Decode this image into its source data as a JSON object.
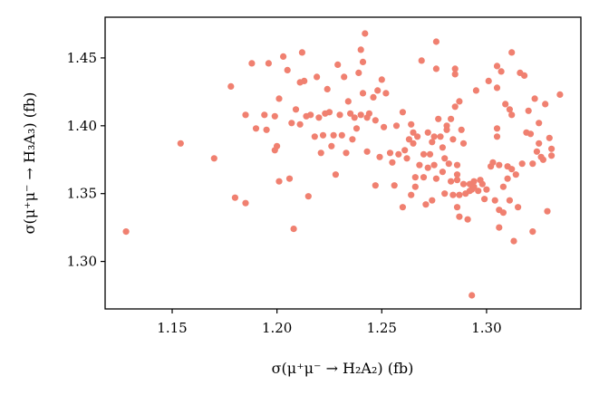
{
  "chart_data": {
    "type": "scatter",
    "xlabel": "σ(μ⁺μ⁻ → H₂A₂) (fb)",
    "ylabel": "σ(μ⁺μ⁻ → H₃A₃) (fb)",
    "xlim": [
      1.118,
      1.345
    ],
    "ylim": [
      1.265,
      1.48
    ],
    "xticks": [
      "1.15",
      "1.20",
      "1.25",
      "1.30"
    ],
    "yticks": [
      "1.30",
      "1.35",
      "1.40",
      "1.45"
    ],
    "grid": false,
    "marker_color": "#f08070",
    "series": [
      {
        "points": [
          [
            1.128,
            1.322
          ],
          [
            1.154,
            1.387
          ],
          [
            1.17,
            1.376
          ],
          [
            1.178,
            1.429
          ],
          [
            1.18,
            1.347
          ],
          [
            1.185,
            1.343
          ],
          [
            1.185,
            1.408
          ],
          [
            1.188,
            1.446
          ],
          [
            1.19,
            1.398
          ],
          [
            1.194,
            1.408
          ],
          [
            1.195,
            1.397
          ],
          [
            1.196,
            1.446
          ],
          [
            1.199,
            1.407
          ],
          [
            1.199,
            1.382
          ],
          [
            1.2,
            1.385
          ],
          [
            1.201,
            1.42
          ],
          [
            1.201,
            1.359
          ],
          [
            1.203,
            1.451
          ],
          [
            1.205,
            1.441
          ],
          [
            1.206,
            1.361
          ],
          [
            1.207,
            1.402
          ],
          [
            1.208,
            1.324
          ],
          [
            1.209,
            1.412
          ],
          [
            1.211,
            1.401
          ],
          [
            1.211,
            1.432
          ],
          [
            1.212,
            1.454
          ],
          [
            1.213,
            1.433
          ],
          [
            1.214,
            1.407
          ],
          [
            1.215,
            1.348
          ],
          [
            1.216,
            1.408
          ],
          [
            1.218,
            1.392
          ],
          [
            1.219,
            1.436
          ],
          [
            1.22,
            1.406
          ],
          [
            1.221,
            1.38
          ],
          [
            1.222,
            1.393
          ],
          [
            1.223,
            1.409
          ],
          [
            1.224,
            1.427
          ],
          [
            1.225,
            1.41
          ],
          [
            1.226,
            1.385
          ],
          [
            1.227,
            1.393
          ],
          [
            1.228,
            1.364
          ],
          [
            1.229,
            1.445
          ],
          [
            1.23,
            1.408
          ],
          [
            1.231,
            1.393
          ],
          [
            1.232,
            1.436
          ],
          [
            1.233,
            1.38
          ],
          [
            1.234,
            1.418
          ],
          [
            1.235,
            1.409
          ],
          [
            1.236,
            1.39
          ],
          [
            1.237,
            1.406
          ],
          [
            1.238,
            1.398
          ],
          [
            1.239,
            1.439
          ],
          [
            1.24,
            1.456
          ],
          [
            1.24,
            1.408
          ],
          [
            1.241,
            1.447
          ],
          [
            1.241,
            1.424
          ],
          [
            1.242,
            1.468
          ],
          [
            1.243,
            1.406
          ],
          [
            1.243,
            1.381
          ],
          [
            1.244,
            1.409
          ],
          [
            1.246,
            1.421
          ],
          [
            1.247,
            1.404
          ],
          [
            1.247,
            1.356
          ],
          [
            1.248,
            1.426
          ],
          [
            1.249,
            1.377
          ],
          [
            1.25,
            1.434
          ],
          [
            1.251,
            1.399
          ],
          [
            1.252,
            1.424
          ],
          [
            1.254,
            1.38
          ],
          [
            1.255,
            1.373
          ],
          [
            1.256,
            1.356
          ],
          [
            1.257,
            1.4
          ],
          [
            1.258,
            1.379
          ],
          [
            1.26,
            1.34
          ],
          [
            1.26,
            1.41
          ],
          [
            1.261,
            1.382
          ],
          [
            1.262,
            1.376
          ],
          [
            1.263,
            1.39
          ],
          [
            1.264,
            1.401
          ],
          [
            1.264,
            1.349
          ],
          [
            1.265,
            1.387
          ],
          [
            1.265,
            1.395
          ],
          [
            1.266,
            1.362
          ],
          [
            1.266,
            1.355
          ],
          [
            1.267,
            1.392
          ],
          [
            1.268,
            1.371
          ],
          [
            1.269,
            1.448
          ],
          [
            1.27,
            1.379
          ],
          [
            1.27,
            1.362
          ],
          [
            1.271,
            1.342
          ],
          [
            1.272,
            1.395
          ],
          [
            1.272,
            1.369
          ],
          [
            1.273,
            1.379
          ],
          [
            1.274,
            1.388
          ],
          [
            1.274,
            1.345
          ],
          [
            1.275,
            1.371
          ],
          [
            1.275,
            1.392
          ],
          [
            1.276,
            1.462
          ],
          [
            1.276,
            1.442
          ],
          [
            1.276,
            1.361
          ],
          [
            1.277,
            1.405
          ],
          [
            1.278,
            1.392
          ],
          [
            1.279,
            1.384
          ],
          [
            1.279,
            1.366
          ],
          [
            1.28,
            1.376
          ],
          [
            1.28,
            1.35
          ],
          [
            1.281,
            1.4
          ],
          [
            1.281,
            1.397
          ],
          [
            1.282,
            1.372
          ],
          [
            1.283,
            1.405
          ],
          [
            1.283,
            1.359
          ],
          [
            1.284,
            1.349
          ],
          [
            1.284,
            1.39
          ],
          [
            1.285,
            1.442
          ],
          [
            1.285,
            1.438
          ],
          [
            1.285,
            1.414
          ],
          [
            1.286,
            1.34
          ],
          [
            1.286,
            1.36
          ],
          [
            1.286,
            1.364
          ],
          [
            1.286,
            1.371
          ],
          [
            1.287,
            1.349
          ],
          [
            1.287,
            1.333
          ],
          [
            1.287,
            1.418
          ],
          [
            1.288,
            1.397
          ],
          [
            1.289,
            1.357
          ],
          [
            1.289,
            1.387
          ],
          [
            1.29,
            1.35
          ],
          [
            1.291,
            1.331
          ],
          [
            1.292,
            1.357
          ],
          [
            1.292,
            1.352
          ],
          [
            1.293,
            1.275
          ],
          [
            1.293,
            1.353
          ],
          [
            1.294,
            1.355
          ],
          [
            1.294,
            1.359
          ],
          [
            1.295,
            1.426
          ],
          [
            1.296,
            1.352
          ],
          [
            1.297,
            1.36
          ],
          [
            1.298,
            1.357
          ],
          [
            1.299,
            1.346
          ],
          [
            1.3,
            1.353
          ],
          [
            1.301,
            1.433
          ],
          [
            1.302,
            1.37
          ],
          [
            1.303,
            1.373
          ],
          [
            1.304,
            1.345
          ],
          [
            1.305,
            1.444
          ],
          [
            1.305,
            1.428
          ],
          [
            1.305,
            1.398
          ],
          [
            1.305,
            1.392
          ],
          [
            1.306,
            1.371
          ],
          [
            1.306,
            1.338
          ],
          [
            1.306,
            1.325
          ],
          [
            1.307,
            1.44
          ],
          [
            1.308,
            1.355
          ],
          [
            1.308,
            1.336
          ],
          [
            1.309,
            1.416
          ],
          [
            1.31,
            1.37
          ],
          [
            1.31,
            1.361
          ],
          [
            1.311,
            1.412
          ],
          [
            1.311,
            1.345
          ],
          [
            1.312,
            1.454
          ],
          [
            1.312,
            1.368
          ],
          [
            1.312,
            1.408
          ],
          [
            1.313,
            1.315
          ],
          [
            1.314,
            1.364
          ],
          [
            1.315,
            1.34
          ],
          [
            1.316,
            1.439
          ],
          [
            1.317,
            1.372
          ],
          [
            1.318,
            1.437
          ],
          [
            1.319,
            1.395
          ],
          [
            1.32,
            1.411
          ],
          [
            1.321,
            1.394
          ],
          [
            1.322,
            1.372
          ],
          [
            1.322,
            1.322
          ],
          [
            1.323,
            1.42
          ],
          [
            1.324,
            1.381
          ],
          [
            1.325,
            1.387
          ],
          [
            1.325,
            1.402
          ],
          [
            1.326,
            1.377
          ],
          [
            1.327,
            1.375
          ],
          [
            1.328,
            1.416
          ],
          [
            1.329,
            1.337
          ],
          [
            1.33,
            1.391
          ],
          [
            1.331,
            1.378
          ],
          [
            1.331,
            1.383
          ],
          [
            1.335,
            1.423
          ]
        ]
      }
    ]
  }
}
